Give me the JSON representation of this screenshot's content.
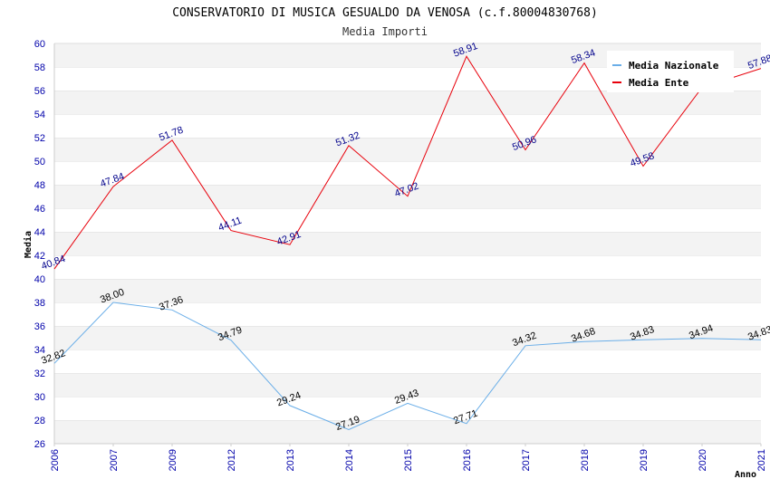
{
  "chart_data": {
    "type": "line",
    "title": "CONSERVATORIO DI MUSICA GESUALDO DA VENOSA (c.f.80004830768)",
    "subtitle": "Media Importi",
    "xlabel": "Anno",
    "ylabel": "Media",
    "ylim": [
      26,
      60
    ],
    "y_step": 2,
    "grid": true,
    "legend_position": "top-right",
    "categories": [
      "2006",
      "2007",
      "2009",
      "2012",
      "2013",
      "2014",
      "2015",
      "2016",
      "2017",
      "2018",
      "2019",
      "2020",
      "2021"
    ],
    "series": [
      {
        "name": "Media Nazionale",
        "color": "#6aaee8",
        "label_color": "#000000",
        "values": [
          32.82,
          38.0,
          37.36,
          34.79,
          29.24,
          27.19,
          29.43,
          27.71,
          34.32,
          34.68,
          34.83,
          34.94,
          34.83
        ],
        "labels": [
          "32.82",
          "38.00",
          "37.36",
          "34.79",
          "29.24",
          "27.19",
          "29.43",
          "27.71",
          "34.32",
          "34.68",
          "34.83",
          "34.94",
          "34.83"
        ]
      },
      {
        "name": "Media Ente",
        "color": "#e8000b",
        "label_color": "#00008b",
        "values": [
          40.84,
          47.84,
          51.78,
          44.11,
          42.91,
          51.32,
          47.02,
          58.91,
          50.96,
          58.34,
          49.58,
          56.27,
          57.88
        ],
        "labels": [
          "40.84",
          "47.84",
          "51.78",
          "44.11",
          "42.91",
          "51.32",
          "47.02",
          "58.91",
          "50.96",
          "58.34",
          "49.58",
          "",
          "57.88"
        ]
      }
    ]
  }
}
